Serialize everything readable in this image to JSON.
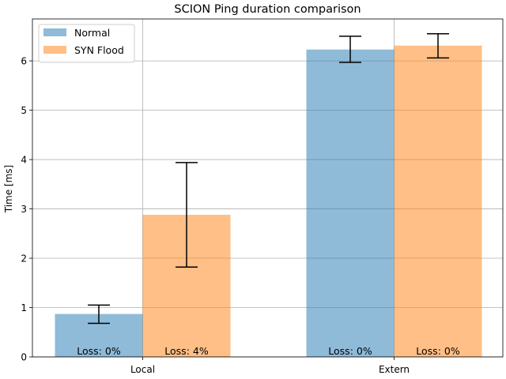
{
  "chart_data": {
    "type": "bar",
    "title": "SCION Ping duration comparison",
    "xlabel": "",
    "ylabel": "Time [ms]",
    "ylim": [
      0,
      6.85
    ],
    "yticks": [
      0,
      1,
      2,
      3,
      4,
      5,
      6
    ],
    "categories": [
      "Local",
      "Extern"
    ],
    "grid": true,
    "legend_position": "top-left",
    "series": [
      {
        "name": "Normal",
        "color": "#1f77b4",
        "values": [
          0.87,
          6.23
        ],
        "error_low": [
          0.68,
          5.97
        ],
        "error_high": [
          1.05,
          6.5
        ],
        "annotations": [
          "Loss: 0%",
          "Loss: 0%"
        ]
      },
      {
        "name": "SYN Flood",
        "color": "#ff7f0e",
        "values": [
          2.88,
          6.31
        ],
        "error_low": [
          1.82,
          6.06
        ],
        "error_high": [
          3.94,
          6.55
        ],
        "annotations": [
          "Loss: 4%",
          "Loss: 0%"
        ]
      }
    ]
  }
}
